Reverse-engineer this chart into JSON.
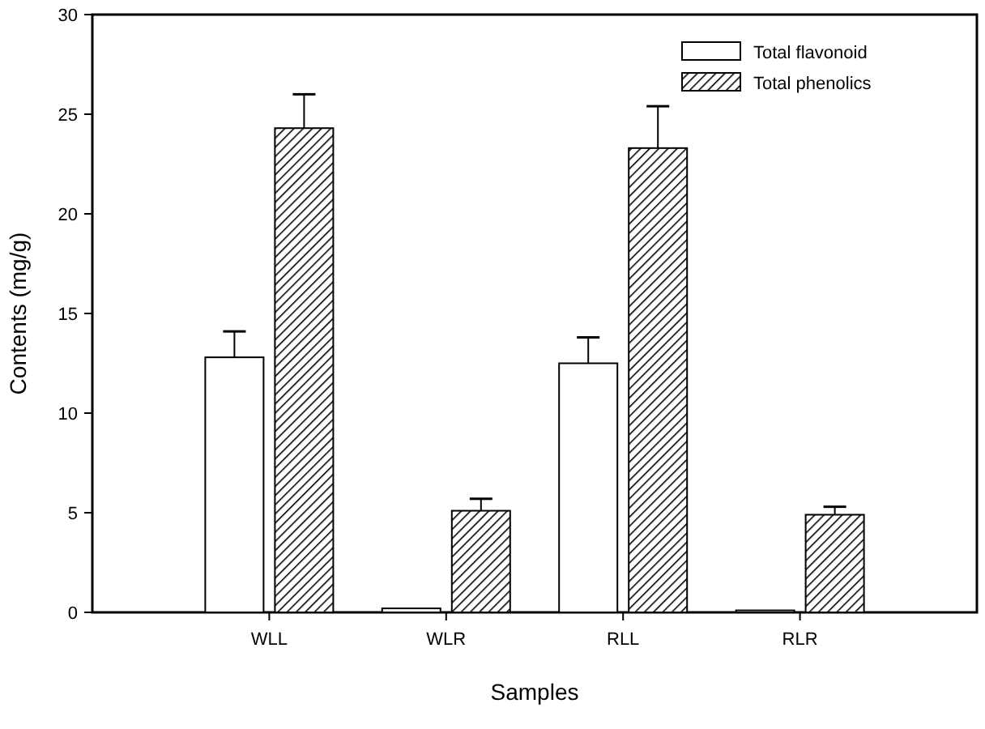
{
  "chart_data": {
    "type": "bar",
    "xlabel": "Samples",
    "ylabel": "Contents (mg/g)",
    "categories": [
      "WLL",
      "WLR",
      "RLL",
      "RLR"
    ],
    "series": [
      {
        "name": "Total flavonoid",
        "color": "#ffffff",
        "values": [
          12.8,
          0.2,
          12.5,
          0.1
        ],
        "errors": [
          1.3,
          null,
          1.3,
          null
        ]
      },
      {
        "name": "Total phenolics",
        "color": "#000000",
        "values": [
          24.3,
          5.1,
          23.3,
          4.9
        ],
        "errors": [
          1.7,
          0.6,
          2.1,
          0.4
        ]
      }
    ],
    "ylim": [
      0,
      30
    ],
    "yticks": [
      0,
      5,
      10,
      15,
      20,
      25,
      30
    ],
    "legend": "top right"
  }
}
